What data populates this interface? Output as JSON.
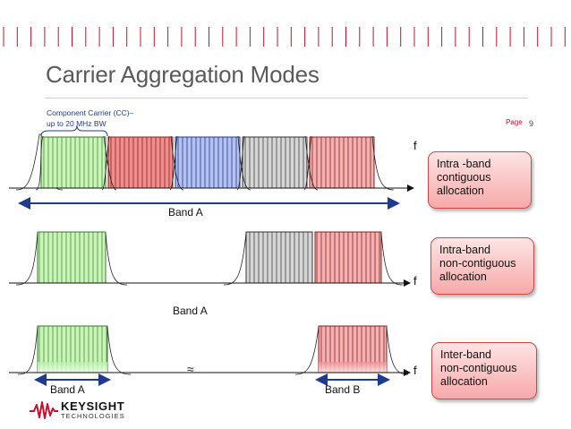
{
  "slide": {
    "title": "Carrier Aggregation Modes",
    "page_label": "Page",
    "page_number": "9"
  },
  "component_carrier": {
    "line1": "Component Carrier (CC)–",
    "line2": "up to 20 MHz BW"
  },
  "axis_label": "f",
  "approx_symbol": "≈",
  "rows": [
    {
      "band_labels": [
        "Band A"
      ],
      "callout": [
        "Intra -band",
        "contiguous",
        "allocation"
      ]
    },
    {
      "band_labels": [
        "Band A"
      ],
      "callout": [
        "Intra-band",
        "non-contiguous",
        "allocation"
      ]
    },
    {
      "band_labels": [
        "Band A",
        "Band B"
      ],
      "callout": [
        "Inter-band",
        "non-contiguous",
        "allocation"
      ]
    }
  ],
  "colors": {
    "green": "#b9f0a6",
    "red": "#ee8f8f",
    "blue": "#a8b8ee",
    "gray": "#cfcfcf",
    "accent": "#c8102e",
    "band_arrow": "#1f3b8f"
  },
  "logo": {
    "name": "KEYSIGHT",
    "tagline": "TECHNOLOGIES"
  }
}
